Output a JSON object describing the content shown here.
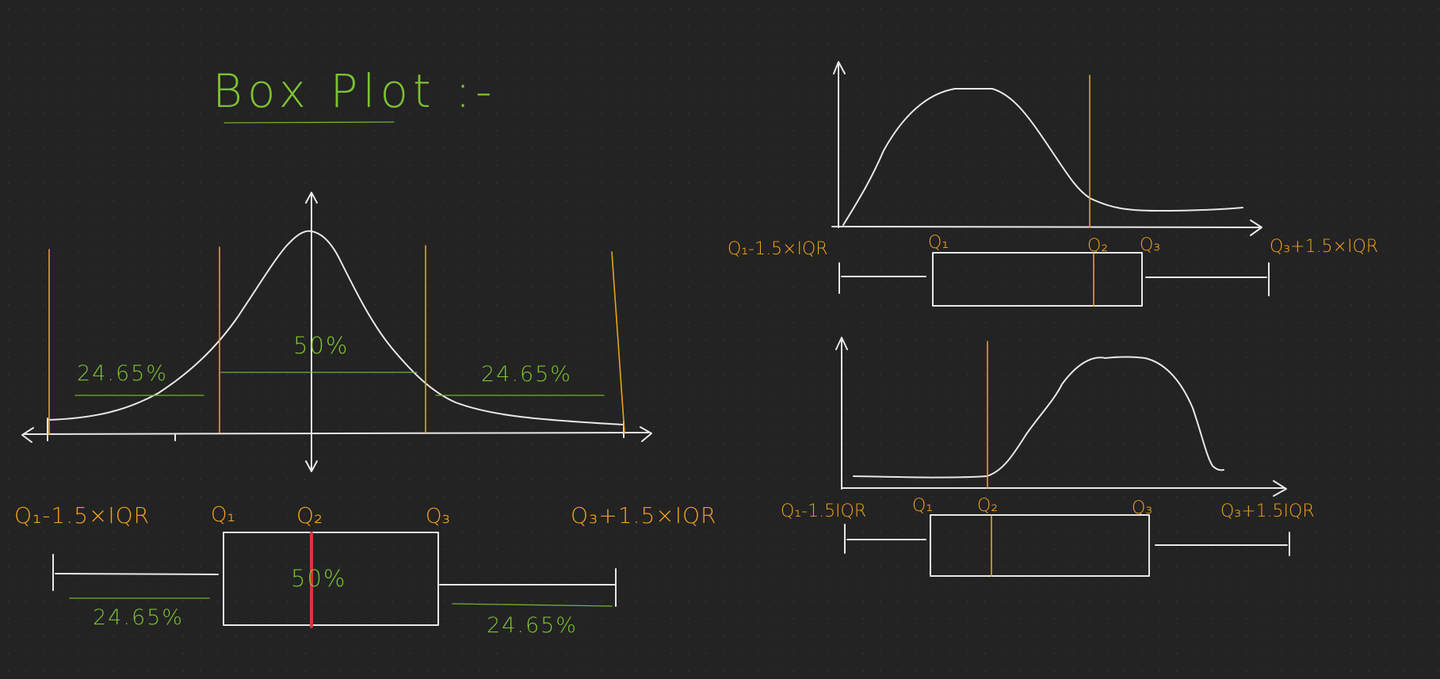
{
  "title": "Box Plot :-",
  "colors": {
    "background": "#232323",
    "ink": "#e8e8e8",
    "accent_orange": "#e8a21e",
    "accent_green": "#6fb52c",
    "median_red": "#e0323c"
  },
  "normal_panel": {
    "pct_left": "24.65%",
    "pct_center": "50%",
    "pct_right": "24.65%",
    "labels": {
      "lower_fence": "Q₁-1.5×IQR",
      "q1": "Q₁",
      "q2": "Q₂",
      "q3": "Q₃",
      "upper_fence": "Q₃+1.5×IQR"
    },
    "box_pct": "50%",
    "whisker_left_pct": "24.65%",
    "whisker_right_pct": "24.65%"
  },
  "right_skew_panel": {
    "labels": {
      "lower_fence": "Q₁-1.5×IQR",
      "q1": "Q₁",
      "q2": "Q₂",
      "q3": "Q₃",
      "upper_fence": "Q₃+1.5×IQR"
    }
  },
  "left_skew_panel": {
    "labels": {
      "lower_fence": "Q₁-1.5IQR",
      "q1": "Q₁",
      "q2": "Q₂",
      "q3": "Q₃",
      "upper_fence": "Q₃+1.5IQR"
    }
  }
}
